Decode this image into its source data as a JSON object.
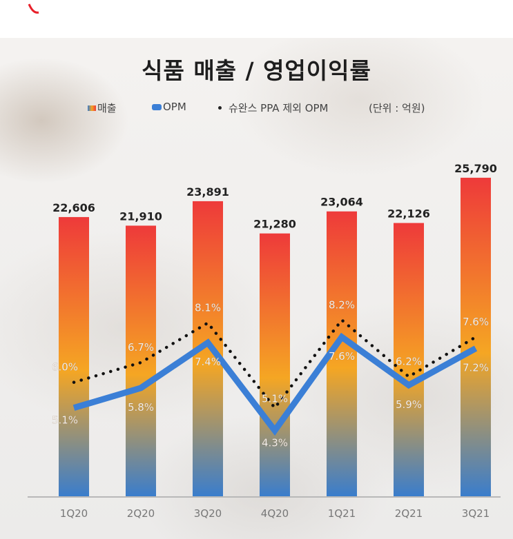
{
  "chart_data": {
    "type": "bar",
    "title": "식품 매출 / 영업이익률",
    "unit_label": "(단위 : 억원)",
    "categories": [
      "1Q20",
      "2Q20",
      "3Q20",
      "4Q20",
      "1Q21",
      "2Q21",
      "3Q21"
    ],
    "series": [
      {
        "name": "매출",
        "type": "bar",
        "values": [
          22606,
          21910,
          23891,
          21280,
          23064,
          22126,
          25790
        ],
        "labels": [
          "22,606",
          "21,910",
          "23,891",
          "21,280",
          "23,064",
          "22,126",
          "25,790"
        ]
      },
      {
        "name": "OPM",
        "type": "line",
        "unit": "%",
        "values": [
          5.1,
          5.8,
          7.4,
          4.3,
          7.6,
          5.9,
          7.2
        ],
        "labels": [
          "5.1%",
          "5.8%",
          "7.4%",
          "4.3%",
          "7.6%",
          "5.9%",
          "7.2%"
        ]
      },
      {
        "name": "슈완스 PPA 제외 OPM",
        "type": "line",
        "style": "dotted",
        "unit": "%",
        "values": [
          6.0,
          6.7,
          8.1,
          5.1,
          8.2,
          6.2,
          7.6
        ],
        "labels": [
          "6.0%",
          "6.7%",
          "8.1%",
          "5.1%",
          "8.2%",
          "6.2%",
          "7.6%"
        ]
      }
    ],
    "legend_position": "top",
    "grid": false,
    "colors": {
      "bar_top": "#ee3a3a",
      "bar_mid": "#f5a623",
      "bar_bottom": "#3a7dcc",
      "opm_line": "#3b7fd6",
      "ppa_line": "#111111"
    }
  }
}
